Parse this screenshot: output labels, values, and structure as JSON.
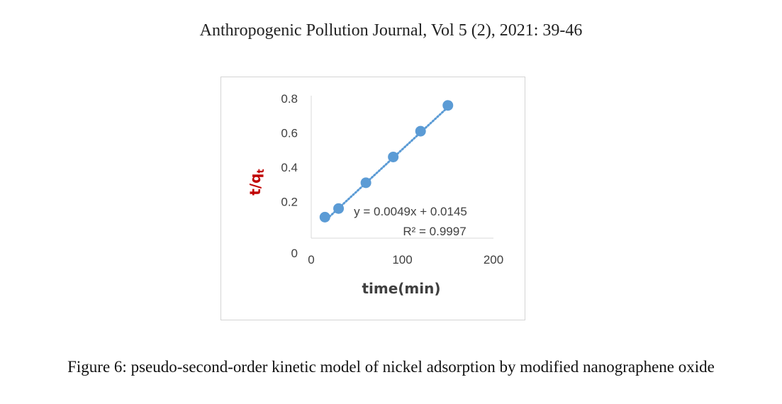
{
  "header": {
    "journal_line": "Anthropogenic Pollution Journal, Vol 5 (2), 2021: 39-46"
  },
  "chart_data": {
    "type": "scatter",
    "title": "",
    "xlabel": "time(min)",
    "ylabel": "t/q",
    "ylabel_subscript": "t",
    "xlim": [
      0,
      200
    ],
    "ylim": [
      0,
      0.8
    ],
    "x_ticks": [
      {
        "value": 0,
        "label": "0"
      },
      {
        "value": 100,
        "label": "100"
      },
      {
        "value": 200,
        "label": "200"
      }
    ],
    "y_ticks": [
      {
        "value": 0,
        "label": "0"
      },
      {
        "value": 0.2,
        "label": "0.2"
      },
      {
        "value": 0.4,
        "label": "0.4"
      },
      {
        "value": 0.6,
        "label": "0.6"
      },
      {
        "value": 0.8,
        "label": "0.8"
      }
    ],
    "grid": false,
    "series": [
      {
        "x": [
          15,
          30,
          60,
          90,
          120,
          150
        ],
        "y": [
          0.11,
          0.16,
          0.31,
          0.46,
          0.61,
          0.76
        ]
      }
    ],
    "trendline": {
      "style": "dotted",
      "slope": 0.0049,
      "intercept": 0.0145,
      "x_range": [
        15,
        150
      ]
    },
    "annotations": {
      "equation": "y = 0.0049x + 0.0145",
      "r_squared": "R² = 0.9997"
    },
    "colors": {
      "marker": "#5b9bd5",
      "axis_label": "#c00000",
      "tick_label": "#404040",
      "axis_line": "#d9d9d9"
    }
  },
  "caption": {
    "text": "Figure 6: pseudo-second-order kinetic model of nickel adsorption by modified nanographene oxide"
  }
}
